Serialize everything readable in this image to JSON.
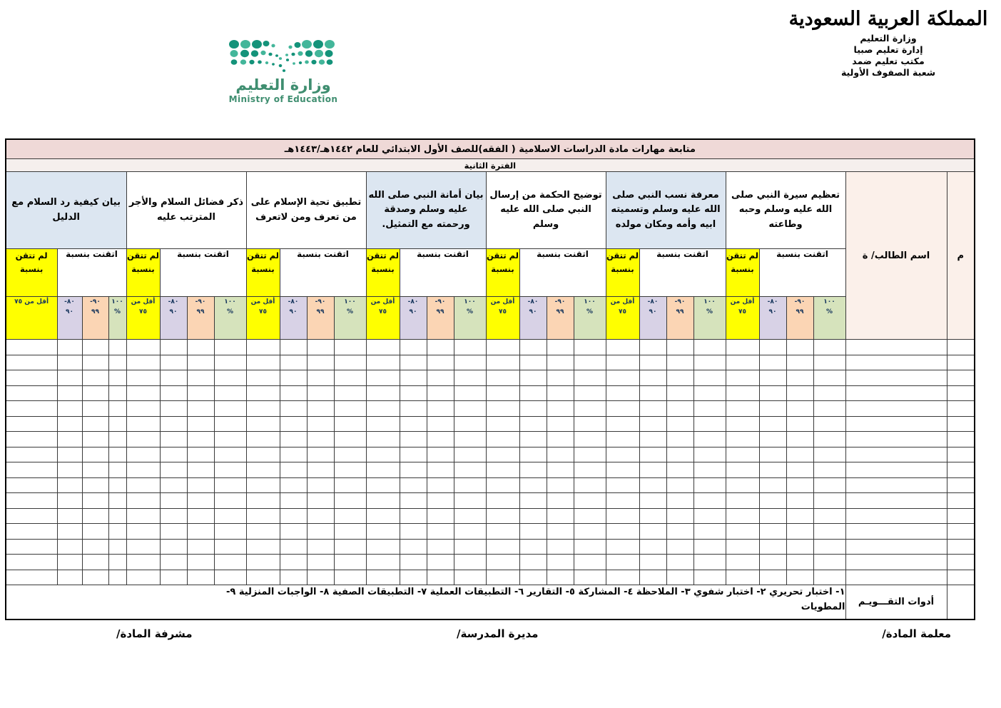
{
  "header": {
    "emblem_text": "المملكة العربية السعودية",
    "gov_lines": [
      "وزارة التعليم",
      "إدارة تعليم صبيا",
      "مكتب تعليم ضمد",
      "شعبة الصفوف الأولية"
    ],
    "moe_logo": {
      "wordmark": "وزارة التعليم",
      "subtitle": "Ministry of Education"
    }
  },
  "table": {
    "title": "متابعة مهارات مادة الدراسات الاسلامية ( الفقه)للصف الأول الابتدائي   للعام ١٤٤٢هـ/١٤٤٣هـ",
    "period": "الفترة الثانية",
    "serial_header": "م",
    "student_header": "اسم الطالب/ ة",
    "mastered_label": "اتقنت بنسبة",
    "not_mastered_label": "لم تتقن بنسبة",
    "bands": {
      "b100": "١٠٠\n%",
      "b90": "٩٠-\n٩٩",
      "b80": "٨٠-\n٩٠",
      "low": "أقل من ٧٥"
    },
    "skills": [
      {
        "name": "تعظيم سيرة النبي صلى الله عليه وسلم وحبه وطاعته",
        "shaded": false
      },
      {
        "name": "معرفة نسب النبي صلى الله عليه وسلم وتسميته ابيه وأمه ومكان مولده",
        "shaded": true
      },
      {
        "name": "توضيح الحكمة من إرسال النبي صلى الله عليه وسلم",
        "shaded": false
      },
      {
        "name": "بيان أمانة النبي صلى الله عليه وسلم وصدقة ورحمته مع التمثيل.",
        "shaded": true
      },
      {
        "name": "تطبيق تحية الإسلام على من تعرف ومن لاتعرف",
        "shaded": false
      },
      {
        "name": "ذكر فضائل السلام والأجر المترتب عليه",
        "shaded": false
      },
      {
        "name": "بيان كيفية رد السلام مع الدليل",
        "shaded": true
      }
    ],
    "empty_rows": 16,
    "tools": {
      "label": "أدوات التقـــويـم",
      "text": "١- اختبار تحريري      ٢- اختبار شفوي       ٣- الملاحظة        ٤- المشاركة        ٥- التقارير       ٦- التطبيقات العملية       ٧- التطبيقات الصفية     ٨- الواجبات المنزلية    ٩-\nالمطويات"
    }
  },
  "signatures": {
    "teacher": "معلمة المادة/",
    "principal": "مديرة المدرسة/",
    "supervisor": "مشرفة المادة/"
  },
  "colors": {
    "title_pink": "#efd9d7",
    "period_bg": "#f5efed",
    "name_column_bg": "#fbf0ea",
    "skill_shaded_blue": "#dce6f1",
    "band_green_100": "#d6e3bc",
    "band_peach_90_99": "#fbd5b4",
    "band_lavender_80_90": "#d8d2e6",
    "band_yellow_not_mastered": "#ffff00",
    "band_text_navy": "#17365d",
    "moe_logo_green": "#3f8e70",
    "moe_dots_dark": "#14937a",
    "moe_dots_light": "#43b69a"
  }
}
